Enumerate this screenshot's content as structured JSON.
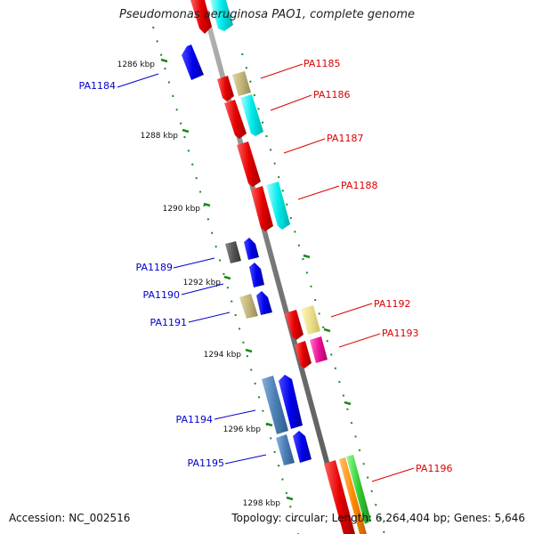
{
  "title": "Pseudomonas aeruginosa PAO1, complete genome",
  "accession": "Accession: NC_002516",
  "topology": "Topology: circular; Length: 6,264,404 bp; Genes: 5,646",
  "ruler_ticks": [
    "1286 kbp",
    "1288 kbp",
    "1290 kbp",
    "1292 kbp",
    "1294 kbp",
    "1296 kbp",
    "1298 kbp"
  ],
  "gene_labels": [
    {
      "name": "PA1184",
      "strand": "reverse",
      "color": "#0000cc"
    },
    {
      "name": "PA1185",
      "strand": "forward",
      "color": "#dd0000"
    },
    {
      "name": "PA1186",
      "strand": "forward",
      "color": "#dd0000"
    },
    {
      "name": "PA1187",
      "strand": "forward",
      "color": "#dd0000"
    },
    {
      "name": "PA1188",
      "strand": "forward",
      "color": "#dd0000"
    },
    {
      "name": "PA1189",
      "strand": "reverse",
      "color": "#0000cc"
    },
    {
      "name": "PA1190",
      "strand": "reverse",
      "color": "#0000cc"
    },
    {
      "name": "PA1191",
      "strand": "reverse",
      "color": "#0000cc"
    },
    {
      "name": "PA1192",
      "strand": "forward",
      "color": "#dd0000"
    },
    {
      "name": "PA1193",
      "strand": "forward",
      "color": "#dd0000"
    },
    {
      "name": "PA1194",
      "strand": "reverse",
      "color": "#0000cc"
    },
    {
      "name": "PA1195",
      "strand": "reverse",
      "color": "#0000cc"
    },
    {
      "name": "PA1196",
      "strand": "forward",
      "color": "#dd0000"
    }
  ],
  "colors": {
    "backbone": "#888888",
    "tick": "#1a8a1a",
    "gene_red": "#ee0000",
    "gene_blue": "#0000ee",
    "gene_cyan": "#00e5e5",
    "gene_olive": "#c2b47a",
    "gene_yellow": "#ece08c",
    "gene_gray": "#555555",
    "gene_steel": "#4a7fb5",
    "gene_magenta": "#ee1199",
    "gene_orange": "#ff8c00",
    "gene_green": "#33cc33"
  }
}
